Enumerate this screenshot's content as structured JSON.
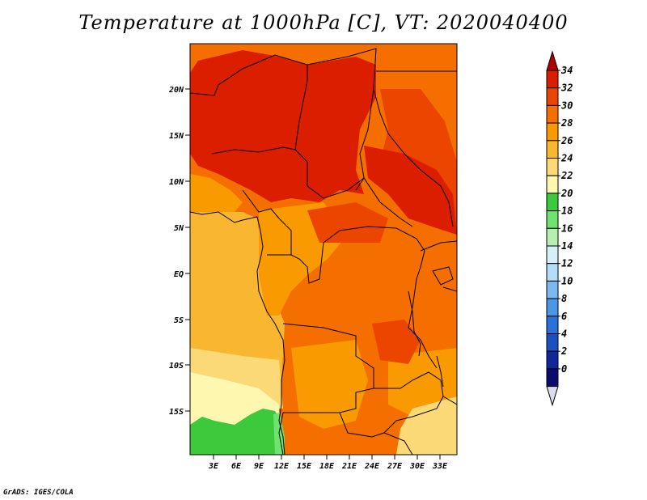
{
  "title": "Temperature at 1000hPa [C], VT: 2020040400",
  "footer": "GrADS: IGES/COLA",
  "map": {
    "lat_ticks": [
      "20N",
      "15N",
      "10N",
      "5N",
      "EQ",
      "5S",
      "10S",
      "15S"
    ],
    "lon_ticks": [
      "3E",
      "6E",
      "9E",
      "12E",
      "15E",
      "18E",
      "21E",
      "24E",
      "27E",
      "30E",
      "33E"
    ]
  },
  "colorbar": {
    "labels": [
      "34",
      "32",
      "30",
      "28",
      "26",
      "24",
      "22",
      "20",
      "18",
      "16",
      "14",
      "12",
      "10",
      "8",
      "6",
      "4",
      "2",
      "0"
    ],
    "colors": [
      "#db1e00",
      "#eb4500",
      "#f46f00",
      "#f89a00",
      "#f9b731",
      "#fcd977",
      "#fdf7b0",
      "#3cc93c",
      "#6fe26f",
      "#b6f0b0",
      "#d7effa",
      "#b4ddf7",
      "#7db9ef",
      "#4b97e6",
      "#2a72d8",
      "#1c4fc2",
      "#10279a",
      "#0b0b6e"
    ],
    "over_color": "#b30000",
    "under_color": "#dcdcf0"
  }
}
